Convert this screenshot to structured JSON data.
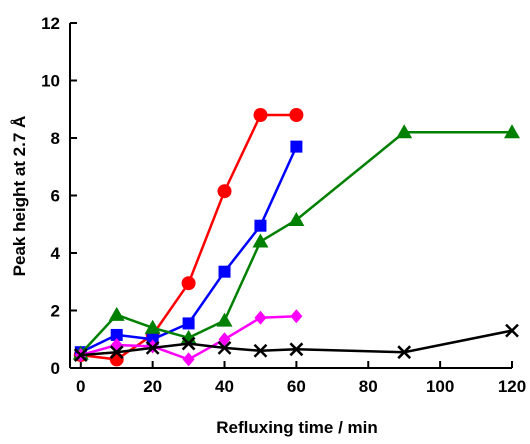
{
  "chart_data": {
    "type": "line",
    "title": "",
    "xlabel": "Refluxing time / min",
    "ylabel": "Peak height at 2.7 Å",
    "xlim": [
      -3,
      120
    ],
    "ylim": [
      0,
      12
    ],
    "xticks": [
      0,
      20,
      40,
      60,
      80,
      100,
      120
    ],
    "yticks": [
      0,
      2,
      4,
      6,
      8,
      10,
      12
    ],
    "grid": false,
    "legend": "none",
    "series": [
      {
        "color": "#ff0000",
        "marker": "circle",
        "x": [
          0,
          10,
          20,
          30,
          40,
          50,
          60
        ],
        "y": [
          0.45,
          0.3,
          1.15,
          2.95,
          6.15,
          8.8,
          8.8
        ]
      },
      {
        "color": "#0000ff",
        "marker": "square",
        "x": [
          0,
          10,
          20,
          30,
          40,
          50,
          60
        ],
        "y": [
          0.55,
          1.15,
          1.0,
          1.55,
          3.35,
          4.95,
          7.7
        ]
      },
      {
        "color": "#008000",
        "marker": "triangle",
        "x": [
          0,
          10,
          20,
          30,
          40,
          50,
          60,
          90,
          120
        ],
        "y": [
          0.5,
          1.85,
          1.4,
          1.05,
          1.65,
          4.4,
          5.15,
          8.2,
          8.2
        ]
      },
      {
        "color": "#ff00ff",
        "marker": "diamond",
        "x": [
          0,
          10,
          20,
          30,
          40,
          50,
          60
        ],
        "y": [
          0.45,
          0.8,
          0.75,
          0.3,
          1.0,
          1.75,
          1.8
        ]
      },
      {
        "color": "#000000",
        "marker": "x",
        "x": [
          0,
          10,
          20,
          30,
          40,
          50,
          60,
          90,
          120
        ],
        "y": [
          0.45,
          0.55,
          0.7,
          0.85,
          0.7,
          0.6,
          0.65,
          0.55,
          1.3
        ]
      }
    ]
  }
}
